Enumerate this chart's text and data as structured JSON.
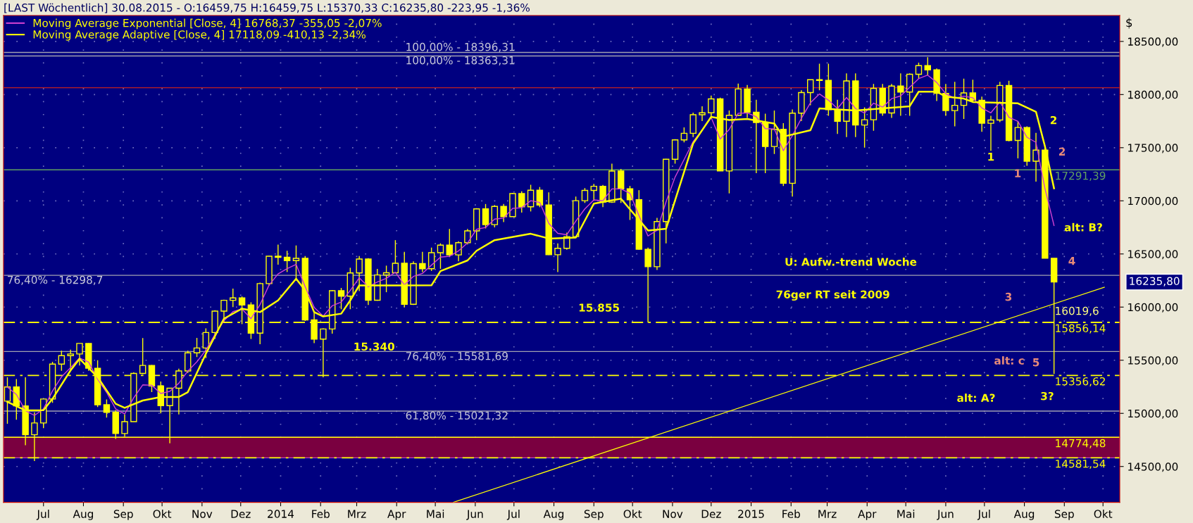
{
  "chart_data": {
    "type": "candlestick",
    "title": "[LAST Wöchentlich] 30.08.2015 - O:16459,75 H:16459,75 L:15370,33 C:16235,80 -223,95 -1,36%",
    "ylabel": "$",
    "color": "#ffff00",
    "x": [
      "2013-06-03",
      "2013-06-10",
      "2013-06-17",
      "2013-06-24",
      "2013-07-01",
      "2013-07-08",
      "2013-07-15",
      "2013-07-22",
      "2013-07-29",
      "2013-08-05",
      "2013-08-12",
      "2013-08-19",
      "2013-08-26",
      "2013-09-02",
      "2013-09-09",
      "2013-09-16",
      "2013-09-23",
      "2013-09-30",
      "2013-10-07",
      "2013-10-14",
      "2013-10-21",
      "2013-10-28",
      "2013-11-04",
      "2013-11-11",
      "2013-11-18",
      "2013-11-25",
      "2013-12-02",
      "2013-12-09",
      "2013-12-16",
      "2013-12-23",
      "2013-12-30",
      "2014-01-06",
      "2014-01-13",
      "2014-01-20",
      "2014-01-27",
      "2014-02-03",
      "2014-02-10",
      "2014-02-17",
      "2014-02-24",
      "2014-03-03",
      "2014-03-10",
      "2014-03-17",
      "2014-03-24",
      "2014-03-31",
      "2014-04-07",
      "2014-04-14",
      "2014-04-21",
      "2014-04-28",
      "2014-05-05",
      "2014-05-12",
      "2014-05-19",
      "2014-05-26",
      "2014-06-02",
      "2014-06-09",
      "2014-06-16",
      "2014-06-23",
      "2014-06-30",
      "2014-07-07",
      "2014-07-14",
      "2014-07-21",
      "2014-07-28",
      "2014-08-04",
      "2014-08-11",
      "2014-08-18",
      "2014-08-25",
      "2014-09-01",
      "2014-09-08",
      "2014-09-15",
      "2014-09-22",
      "2014-09-29",
      "2014-10-06",
      "2014-10-13",
      "2014-10-20",
      "2014-10-27",
      "2014-11-03",
      "2014-11-10",
      "2014-11-17",
      "2014-11-24",
      "2014-12-01",
      "2014-12-08",
      "2014-12-15",
      "2014-12-22",
      "2014-12-29",
      "2015-01-05",
      "2015-01-12",
      "2015-01-19",
      "2015-01-26",
      "2015-02-02",
      "2015-02-09",
      "2015-02-16",
      "2015-02-23",
      "2015-03-02",
      "2015-03-09",
      "2015-03-16",
      "2015-03-23",
      "2015-03-30",
      "2015-04-06",
      "2015-04-13",
      "2015-04-20",
      "2015-04-27",
      "2015-05-04",
      "2015-05-11",
      "2015-05-18",
      "2015-05-25",
      "2015-06-01",
      "2015-06-08",
      "2015-06-15",
      "2015-06-22",
      "2015-06-29",
      "2015-07-06",
      "2015-07-13",
      "2015-07-20",
      "2015-07-27",
      "2015-08-03",
      "2015-08-10",
      "2015-08-17",
      "2015-08-24"
    ],
    "ohlc": [
      [
        15115,
        15340,
        14902,
        15248
      ],
      [
        15248,
        15323,
        14940,
        15070
      ],
      [
        15070,
        15340,
        14700,
        14799
      ],
      [
        14799,
        15010,
        14551,
        14910
      ],
      [
        14910,
        15135,
        14860,
        15135
      ],
      [
        15135,
        15485,
        15100,
        15464
      ],
      [
        15464,
        15590,
        15400,
        15543
      ],
      [
        15543,
        15600,
        15400,
        15559
      ],
      [
        15559,
        15658,
        15450,
        15658
      ],
      [
        15658,
        15660,
        15400,
        15425
      ],
      [
        15425,
        15500,
        15060,
        15081
      ],
      [
        15081,
        15130,
        14960,
        15010
      ],
      [
        15010,
        15030,
        14760,
        14810
      ],
      [
        14810,
        14990,
        14780,
        14922
      ],
      [
        14922,
        15385,
        14920,
        15376
      ],
      [
        15376,
        15709,
        15370,
        15451
      ],
      [
        15451,
        15455,
        15200,
        15258
      ],
      [
        15258,
        15300,
        15000,
        15073
      ],
      [
        15073,
        15240,
        14719,
        15237
      ],
      [
        15237,
        15420,
        14990,
        15399
      ],
      [
        15399,
        15590,
        15380,
        15570
      ],
      [
        15570,
        15710,
        15530,
        15615
      ],
      [
        15615,
        15800,
        15520,
        15761
      ],
      [
        15761,
        15970,
        15700,
        15962
      ],
      [
        15962,
        16070,
        15860,
        16064
      ],
      [
        16064,
        16174,
        16000,
        16086
      ],
      [
        16086,
        16100,
        15840,
        16020
      ],
      [
        16020,
        16045,
        15700,
        15755
      ],
      [
        15755,
        16230,
        15650,
        16221
      ],
      [
        16221,
        16482,
        16200,
        16479
      ],
      [
        16479,
        16588,
        16400,
        16469
      ],
      [
        16469,
        16530,
        16330,
        16437
      ],
      [
        16437,
        16580,
        16250,
        16459
      ],
      [
        16459,
        16480,
        15870,
        15879
      ],
      [
        15879,
        15950,
        15660,
        15699
      ],
      [
        15699,
        15800,
        15340,
        15794
      ],
      [
        15794,
        16160,
        15750,
        16154
      ],
      [
        16154,
        16180,
        15980,
        16103
      ],
      [
        16103,
        16370,
        15980,
        16321
      ],
      [
        16321,
        16480,
        16150,
        16452
      ],
      [
        16452,
        16460,
        16020,
        16065
      ],
      [
        16065,
        16360,
        16060,
        16302
      ],
      [
        16302,
        16390,
        16140,
        16323
      ],
      [
        16323,
        16630,
        16320,
        16412
      ],
      [
        16412,
        16520,
        16000,
        16027
      ],
      [
        16027,
        16430,
        16020,
        16409
      ],
      [
        16409,
        16520,
        16330,
        16361
      ],
      [
        16361,
        16560,
        16340,
        16512
      ],
      [
        16512,
        16600,
        16360,
        16583
      ],
      [
        16583,
        16736,
        16470,
        16491
      ],
      [
        16491,
        16620,
        16430,
        16606
      ],
      [
        16606,
        16735,
        16590,
        16717
      ],
      [
        16717,
        16930,
        16630,
        16924
      ],
      [
        16924,
        16970,
        16740,
        16776
      ],
      [
        16776,
        16960,
        16750,
        16947
      ],
      [
        16947,
        16970,
        16800,
        16851
      ],
      [
        16851,
        17074,
        16850,
        17068
      ],
      [
        17068,
        17090,
        16890,
        16944
      ],
      [
        16944,
        17151,
        16900,
        17100
      ],
      [
        17100,
        17130,
        16940,
        16961
      ],
      [
        16961,
        17080,
        16490,
        16493
      ],
      [
        16493,
        16600,
        16330,
        16553
      ],
      [
        16553,
        16700,
        16540,
        16663
      ],
      [
        16663,
        17040,
        16660,
        17001
      ],
      [
        17001,
        17120,
        16980,
        17098
      ],
      [
        17098,
        17160,
        17000,
        17137
      ],
      [
        17137,
        17150,
        16940,
        16988
      ],
      [
        16988,
        17350,
        16980,
        17280
      ],
      [
        17280,
        17300,
        16980,
        17113
      ],
      [
        17113,
        17140,
        16820,
        17010
      ],
      [
        17010,
        17100,
        16540,
        16544
      ],
      [
        16544,
        16560,
        15855,
        16380
      ],
      [
        16380,
        16840,
        16350,
        16805
      ],
      [
        16805,
        17395,
        16600,
        17391
      ],
      [
        17391,
        17580,
        17350,
        17573
      ],
      [
        17573,
        17690,
        17550,
        17635
      ],
      [
        17635,
        17830,
        17600,
        17810
      ],
      [
        17810,
        17890,
        17750,
        17828
      ],
      [
        17828,
        17990,
        17780,
        17959
      ],
      [
        17959,
        17970,
        17280,
        17281
      ],
      [
        17281,
        17850,
        17070,
        17805
      ],
      [
        17805,
        18103,
        17800,
        18053
      ],
      [
        18053,
        18090,
        17780,
        17833
      ],
      [
        17833,
        17950,
        17260,
        17737
      ],
      [
        17737,
        17820,
        17260,
        17511
      ],
      [
        17511,
        17850,
        17440,
        17673
      ],
      [
        17673,
        17730,
        17140,
        17165
      ],
      [
        17165,
        17860,
        17040,
        17825
      ],
      [
        17825,
        18040,
        17750,
        18019
      ],
      [
        18019,
        18140,
        17900,
        18140
      ],
      [
        18140,
        18290,
        18040,
        18133
      ],
      [
        18133,
        18290,
        17800,
        17857
      ],
      [
        17857,
        17950,
        17630,
        17749
      ],
      [
        17749,
        18200,
        17600,
        18128
      ],
      [
        18128,
        18200,
        17600,
        17713
      ],
      [
        17713,
        17880,
        17500,
        17763
      ],
      [
        17763,
        18100,
        17660,
        18058
      ],
      [
        18058,
        18100,
        17800,
        17827
      ],
      [
        17827,
        18100,
        17780,
        18080
      ],
      [
        18080,
        18200,
        17800,
        18024
      ],
      [
        18024,
        18200,
        17800,
        18191
      ],
      [
        18191,
        18300,
        18150,
        18272
      ],
      [
        18272,
        18352,
        18180,
        18232
      ],
      [
        18232,
        18245,
        17940,
        18011
      ],
      [
        18011,
        18100,
        17800,
        17849
      ],
      [
        17849,
        18120,
        17700,
        17899
      ],
      [
        17899,
        18150,
        17770,
        18015
      ],
      [
        18015,
        18140,
        17930,
        17947
      ],
      [
        17947,
        17980,
        17650,
        17730
      ],
      [
        17730,
        17800,
        17470,
        17760
      ],
      [
        17760,
        18120,
        17740,
        18086
      ],
      [
        18086,
        18130,
        17560,
        17568
      ],
      [
        17568,
        17750,
        17400,
        17690
      ],
      [
        17690,
        17700,
        17330,
        17373
      ],
      [
        17373,
        17640,
        17180,
        17477
      ],
      [
        17477,
        17500,
        16460,
        16460
      ],
      [
        16459.75,
        16459.75,
        15370.33,
        16235.8
      ]
    ],
    "series": [
      {
        "type": "line",
        "name": "Moving Average Exponential [Close, 4] 16768,37 -355,05 -2,07%",
        "color": "#d040d0",
        "values": [
          15248,
          15177,
          15026,
          14980,
          15042,
          15211,
          15344,
          15430,
          15521,
          15483,
          15322,
          15197,
          15042,
          14994,
          15146,
          15268,
          15264,
          15187,
          15207,
          15284,
          15398,
          15485,
          15595,
          15742,
          15871,
          15957,
          15982,
          15891,
          16023,
          16206,
          16312,
          16362,
          16401,
          16193,
          15996,
          15916,
          16012,
          16048,
          16157,
          16275,
          16191,
          16236,
          16271,
          16328,
          16208,
          16289,
          16317,
          16395,
          16470,
          16478,
          16529,
          16604,
          16732,
          16749,
          16828,
          16837,
          16929,
          16935,
          17001,
          16985,
          16788,
          16694,
          16681,
          16809,
          16924,
          17009,
          17000,
          17112,
          17112,
          17071,
          16861,
          16669,
          16723,
          16990,
          17223,
          17388,
          17557,
          17665,
          17783,
          17582,
          17671,
          17824,
          17827,
          17791,
          17679,
          17676,
          17472,
          17613,
          17776,
          17922,
          18006,
          17947,
          17868,
          17972,
          17868,
          17826,
          17919,
          17882,
          17961,
          17987,
          18068,
          18150,
          18183,
          18114,
          18008,
          17965,
          17985,
          17970,
          17874,
          17828,
          17931,
          17786,
          17748,
          17598,
          17550,
          17114,
          16768
        ]
      },
      {
        "type": "line",
        "name": "Moving Average Adaptive [Close, 4] 17118,09 -410,13 -2,34%",
        "color": "#ffff00",
        "x": [
          "2013-06-03",
          "2013-06-17",
          "2013-07-01",
          "2013-07-08",
          "2013-07-22",
          "2013-07-29",
          "2013-08-12",
          "2013-08-26",
          "2013-09-02",
          "2013-09-16",
          "2013-09-30",
          "2013-10-14",
          "2013-10-21",
          "2013-11-04",
          "2013-11-18",
          "2013-12-02",
          "2013-12-16",
          "2013-12-30",
          "2014-01-13",
          "2014-01-20",
          "2014-01-27",
          "2014-02-03",
          "2014-02-17",
          "2014-02-24",
          "2014-03-03",
          "2014-03-31",
          "2014-04-28",
          "2014-05-05",
          "2014-05-26",
          "2014-06-02",
          "2014-06-16",
          "2014-07-14",
          "2014-07-28",
          "2014-08-18",
          "2014-09-01",
          "2014-09-22",
          "2014-10-13",
          "2014-10-27",
          "2014-11-17",
          "2014-12-01",
          "2014-12-15",
          "2014-12-29",
          "2015-01-19",
          "2015-01-26",
          "2015-02-16",
          "2015-02-23",
          "2015-03-23",
          "2015-05-04",
          "2015-05-11",
          "2015-05-25",
          "2015-06-01",
          "2015-06-15",
          "2015-06-22",
          "2015-07-27",
          "2015-08-10",
          "2015-08-17",
          "2015-08-24"
        ],
        "values": [
          15108,
          15028,
          15030,
          15137,
          15404,
          15514,
          15341,
          15090,
          15052,
          15121,
          15154,
          15154,
          15200,
          15561,
          15891,
          15985,
          15953,
          16063,
          16267,
          16157,
          15953,
          15912,
          15938,
          16063,
          16204,
          16204,
          16205,
          16339,
          16439,
          16530,
          16630,
          16690,
          16645,
          16654,
          16974,
          17020,
          16721,
          16737,
          17539,
          17790,
          17760,
          17770,
          17727,
          17604,
          17664,
          17869,
          17849,
          17890,
          18027,
          18027,
          17980,
          17962,
          17930,
          17917,
          17838,
          17510,
          17118
        ]
      },
      {
        "type": "line",
        "color": "#ffff00",
        "x": [
          "2014-05-15",
          "2015-10-02"
        ],
        "values": [
          14163,
          16187
        ]
      }
    ],
    "xlim": [
      "2013-05-31",
      "2015-10-14"
    ],
    "ylim": [
      14163,
      18744
    ],
    "xticks": [
      {
        "value": "2013-07-01",
        "label": "Jul"
      },
      {
        "value": "2013-08-01",
        "label": "Aug"
      },
      {
        "value": "2013-09-01",
        "label": "Sep"
      },
      {
        "value": "2013-10-01",
        "label": "Okt"
      },
      {
        "value": "2013-11-01",
        "label": "Nov"
      },
      {
        "value": "2013-12-01",
        "label": "Dez"
      },
      {
        "value": "2014-01-01",
        "label": "2014"
      },
      {
        "value": "2014-02-01",
        "label": "Feb"
      },
      {
        "value": "2014-03-01",
        "label": "Mrz"
      },
      {
        "value": "2014-04-01",
        "label": "Apr"
      },
      {
        "value": "2014-05-01",
        "label": "Mai"
      },
      {
        "value": "2014-06-01",
        "label": "Jun"
      },
      {
        "value": "2014-07-01",
        "label": "Jul"
      },
      {
        "value": "2014-08-01",
        "label": "Aug"
      },
      {
        "value": "2014-09-01",
        "label": "Sep"
      },
      {
        "value": "2014-10-01",
        "label": "Okt"
      },
      {
        "value": "2014-11-01",
        "label": "Nov"
      },
      {
        "value": "2014-12-01",
        "label": "Dez"
      },
      {
        "value": "2015-01-01",
        "label": "2015"
      },
      {
        "value": "2015-02-01",
        "label": "Feb"
      },
      {
        "value": "2015-03-01",
        "label": "Mrz"
      },
      {
        "value": "2015-04-01",
        "label": "Apr"
      },
      {
        "value": "2015-05-01",
        "label": "Mai"
      },
      {
        "value": "2015-06-01",
        "label": "Jun"
      },
      {
        "value": "2015-07-01",
        "label": "Jul"
      },
      {
        "value": "2015-08-01",
        "label": "Aug"
      },
      {
        "value": "2015-09-01",
        "label": "Sep"
      },
      {
        "value": "2015-10-01",
        "label": "Okt"
      }
    ],
    "yticks": [
      {
        "value": 14500,
        "label": "14500,00"
      },
      {
        "value": 15000,
        "label": "15000,00"
      },
      {
        "value": 15500,
        "label": "15500,00"
      },
      {
        "value": 16000,
        "label": "16000,00"
      },
      {
        "value": 16500,
        "label": "16500,00"
      },
      {
        "value": 17000,
        "label": "17000,00"
      },
      {
        "value": 17500,
        "label": "17500,00"
      },
      {
        "value": 18000,
        "label": "18000,00"
      },
      {
        "value": 18500,
        "label": "18500,00"
      }
    ],
    "ref_lines": [
      {
        "axis": "y",
        "value": 18396.31,
        "label": null,
        "color": "#a0a0b0"
      },
      {
        "axis": "y",
        "value": 18363.31,
        "label": null,
        "color": "#a0a0b0"
      },
      {
        "axis": "y",
        "value": 16298.7,
        "label": null,
        "color": "#a0a0b0"
      },
      {
        "axis": "y",
        "value": 15581.69,
        "label": null,
        "color": "#a0a0b0"
      },
      {
        "axis": "y",
        "value": 15021.32,
        "label": null,
        "color": "#a0a0b0"
      },
      {
        "axis": "y",
        "value": 18064,
        "label": null,
        "color": "#c02020"
      },
      {
        "axis": "y",
        "value": 17291.39,
        "label": "17291,39",
        "color": "#60a060"
      },
      {
        "axis": "y",
        "value": 15856.14,
        "label": "15856,14",
        "color": "#ffff00",
        "line_style": "dashed"
      },
      {
        "axis": "y",
        "value": 15356.62,
        "label": "15356,62",
        "color": "#ffff00",
        "line_style": "dashed"
      },
      {
        "axis": "y",
        "value": 14774.48,
        "label": "14774,48",
        "color": "#ffff00"
      },
      {
        "axis": "y",
        "value": 14581.54,
        "label": "14581,54",
        "color": "#ffff00",
        "line_style": "dashed"
      }
    ],
    "bands": [
      {
        "axis": "y",
        "from": 14581.54,
        "to": 14774.48,
        "color": "#7a0040"
      }
    ],
    "annotations": [
      "U: Aufw.-trend Woche",
      "76ger RT seit 2009",
      "15.855",
      "15.340",
      "1",
      "2",
      "alt: B?",
      "alt: A?",
      "3?",
      "1",
      "2",
      "3",
      "4",
      "5",
      "alt: c",
      {
        "text": "16019,6",
        "x": "2015-08-24",
        "y": 16019.6
      },
      "16235,80",
      "100,00% - 18396,31",
      "100,00% - 18363,31",
      "76,40% - 16298,7",
      "76,40% - 15581,69",
      "61,80% - 15021,32"
    ],
    "grid": true,
    "legend": "top left"
  }
}
